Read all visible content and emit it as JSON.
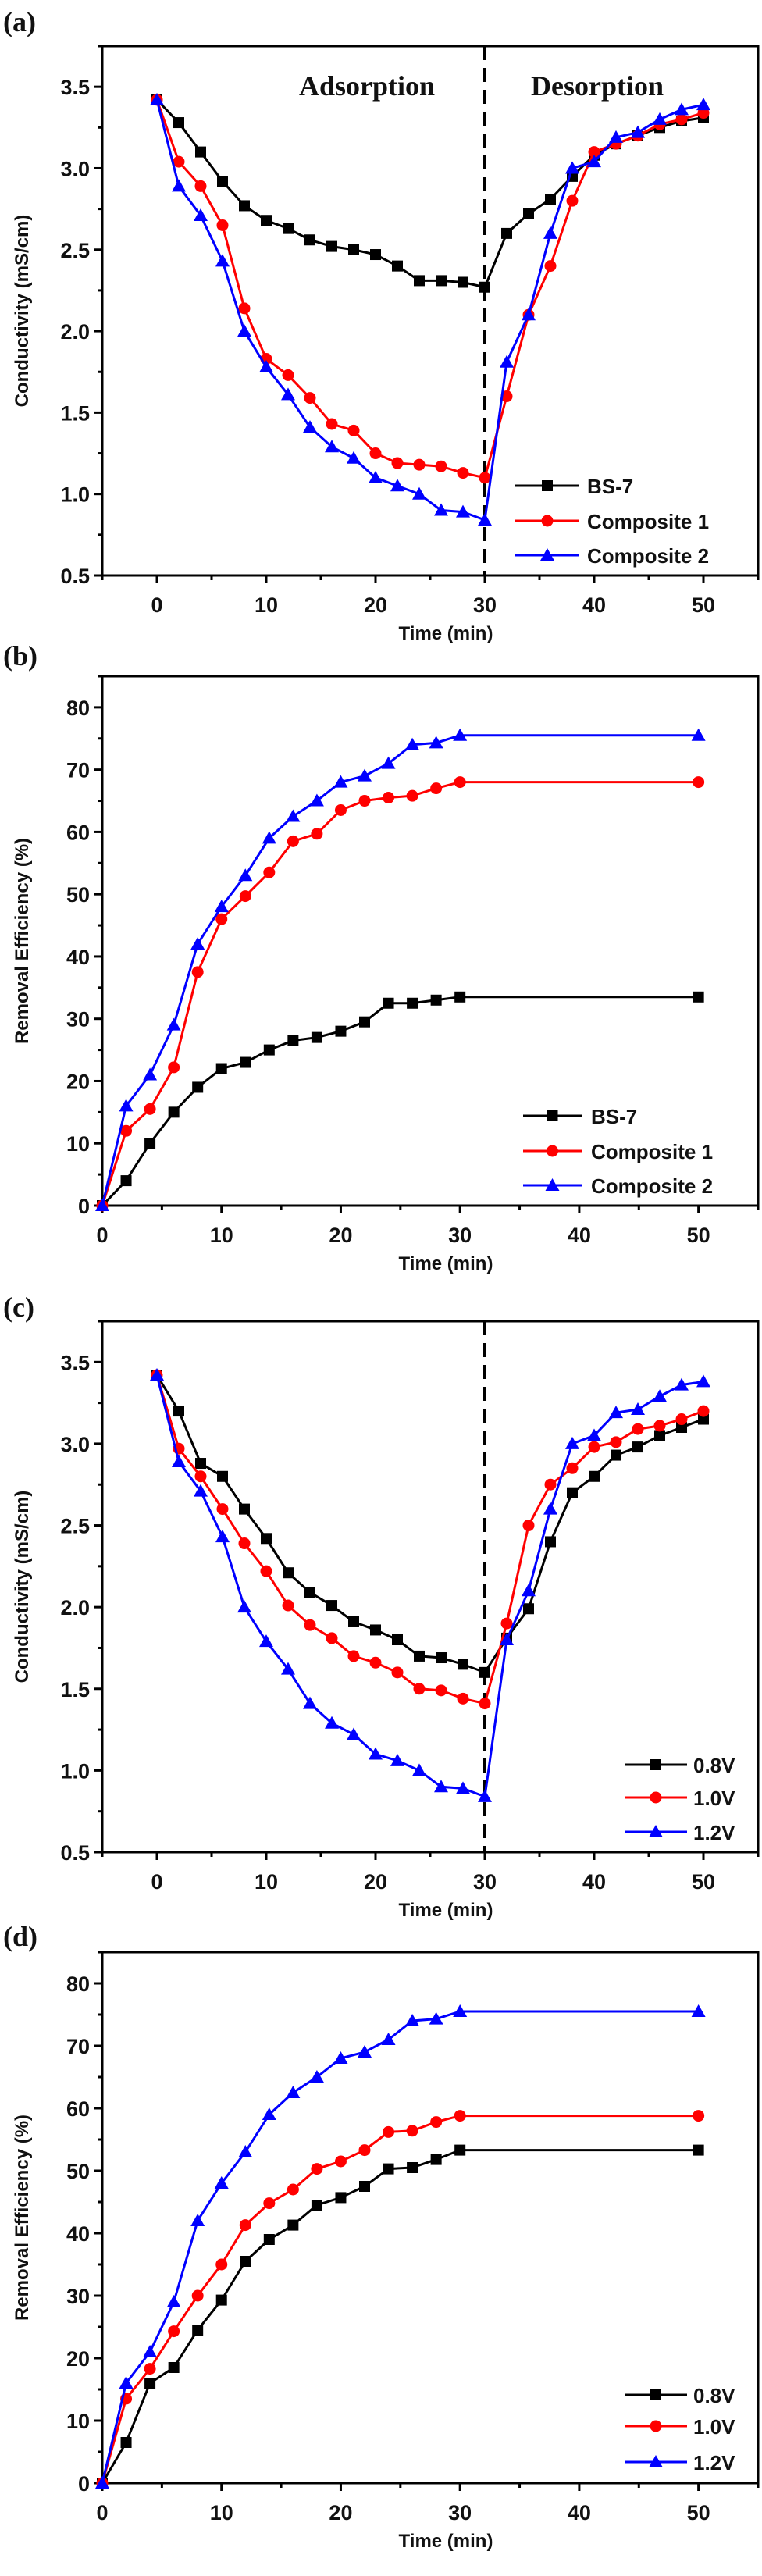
{
  "chart_data": [
    {
      "panel_label": "(a)",
      "type": "line",
      "xlabel": "Time (min)",
      "ylabel": "Conductivity (mS/cm)",
      "xlim": [
        -5,
        55
      ],
      "ylim": [
        0.5,
        3.75
      ],
      "xticks": [
        0,
        10,
        20,
        30,
        40,
        50
      ],
      "xtick_labels": [
        "0",
        "10",
        "20",
        "30",
        "40",
        "50"
      ],
      "yticks": [
        0.5,
        1.0,
        1.5,
        2.0,
        2.5,
        3.0,
        3.5
      ],
      "ytick_labels": [
        "0.5",
        "1.0",
        "1.5",
        "2.0",
        "2.5",
        "3.0",
        "3.5"
      ],
      "grid": false,
      "legend": "bottom-right",
      "vline": 30,
      "annotations": [
        "Adsorption",
        "Desorption"
      ],
      "x": [
        0,
        2,
        4,
        6,
        8,
        10,
        12,
        14,
        16,
        18,
        20,
        22,
        24,
        26,
        28,
        30,
        32,
        34,
        36,
        38,
        40,
        42,
        44,
        46,
        48,
        50
      ],
      "series": [
        {
          "name": "BS-7",
          "color": "#000000",
          "marker": "square",
          "values": [
            3.42,
            3.28,
            3.1,
            2.92,
            2.77,
            2.68,
            2.63,
            2.56,
            2.52,
            2.5,
            2.47,
            2.4,
            2.31,
            2.31,
            2.3,
            2.27,
            2.6,
            2.72,
            2.81,
            2.95,
            3.08,
            3.15,
            3.2,
            3.25,
            3.29,
            3.31
          ]
        },
        {
          "name": "Composite 1",
          "color": "#ff0000",
          "marker": "circle",
          "values": [
            3.42,
            3.04,
            2.89,
            2.65,
            2.14,
            1.83,
            1.73,
            1.59,
            1.43,
            1.39,
            1.25,
            1.19,
            1.18,
            1.17,
            1.13,
            1.1,
            1.6,
            2.1,
            2.4,
            2.8,
            3.1,
            3.15,
            3.2,
            3.27,
            3.3,
            3.34
          ]
        },
        {
          "name": "Composite 2",
          "color": "#0000ff",
          "marker": "triangle",
          "values": [
            3.42,
            2.89,
            2.71,
            2.43,
            2.0,
            1.78,
            1.61,
            1.41,
            1.29,
            1.22,
            1.1,
            1.05,
            1.0,
            0.9,
            0.89,
            0.84,
            1.81,
            2.1,
            2.6,
            3.0,
            3.04,
            3.19,
            3.22,
            3.3,
            3.36,
            3.39
          ]
        }
      ]
    },
    {
      "panel_label": "(b)",
      "type": "line",
      "xlabel": "Time (min)",
      "ylabel": "Removal Efficiency (%)",
      "xlim": [
        0,
        55
      ],
      "ylim": [
        0,
        85
      ],
      "xticks": [
        0,
        10,
        20,
        30,
        40,
        50
      ],
      "xtick_labels": [
        "0",
        "10",
        "20",
        "30",
        "40",
        "50"
      ],
      "yticks": [
        0,
        10,
        20,
        30,
        40,
        50,
        60,
        70,
        80
      ],
      "ytick_labels": [
        "0",
        "10",
        "20",
        "30",
        "40",
        "50",
        "60",
        "70",
        "80"
      ],
      "grid": false,
      "legend": "bottom-right",
      "x": [
        0,
        2,
        4,
        6,
        8,
        10,
        12,
        14,
        16,
        18,
        20,
        22,
        24,
        26,
        28,
        30,
        50
      ],
      "series": [
        {
          "name": "BS-7",
          "color": "#000000",
          "marker": "square",
          "values": [
            0,
            4,
            10,
            15,
            19,
            22,
            23,
            25,
            26.5,
            27,
            28,
            29.5,
            32.5,
            32.5,
            33,
            33.5,
            33.5
          ]
        },
        {
          "name": "Composite 1",
          "color": "#ff0000",
          "marker": "circle",
          "values": [
            0,
            12,
            15.5,
            22.2,
            37.5,
            46,
            49.7,
            53.5,
            58.5,
            59.7,
            63.5,
            65,
            65.5,
            65.8,
            67,
            68,
            68
          ]
        },
        {
          "name": "Composite 2",
          "color": "#0000ff",
          "marker": "triangle",
          "values": [
            0,
            16,
            21,
            29,
            42,
            48,
            53,
            59,
            62.5,
            65,
            68,
            69,
            71,
            74,
            74.3,
            75.5,
            75.5
          ]
        }
      ]
    },
    {
      "panel_label": "(c)",
      "type": "line",
      "xlabel": "Time (min)",
      "ylabel": "Conductivity (mS/cm)",
      "xlim": [
        -5,
        55
      ],
      "ylim": [
        0.5,
        3.75
      ],
      "xticks": [
        0,
        10,
        20,
        30,
        40,
        50
      ],
      "xtick_labels": [
        "0",
        "10",
        "20",
        "30",
        "40",
        "50"
      ],
      "yticks": [
        0.5,
        1.0,
        1.5,
        2.0,
        2.5,
        3.0,
        3.5
      ],
      "ytick_labels": [
        "0.5",
        "1.0",
        "1.5",
        "2.0",
        "2.5",
        "3.0",
        "3.5"
      ],
      "grid": false,
      "legend": "bottom-right",
      "vline": 30,
      "x": [
        0,
        2,
        4,
        6,
        8,
        10,
        12,
        14,
        16,
        18,
        20,
        22,
        24,
        26,
        28,
        30,
        32,
        34,
        36,
        38,
        40,
        42,
        44,
        46,
        48,
        50
      ],
      "series": [
        {
          "name": "0.8V",
          "color": "#000000",
          "marker": "square",
          "values": [
            3.42,
            3.2,
            2.88,
            2.8,
            2.6,
            2.42,
            2.21,
            2.09,
            2.01,
            1.91,
            1.86,
            1.8,
            1.7,
            1.69,
            1.65,
            1.6,
            1.81,
            1.99,
            2.4,
            2.7,
            2.8,
            2.93,
            2.98,
            3.05,
            3.1,
            3.15
          ]
        },
        {
          "name": "1.0V",
          "color": "#ff0000",
          "marker": "circle",
          "values": [
            3.42,
            2.97,
            2.8,
            2.6,
            2.39,
            2.22,
            2.01,
            1.89,
            1.81,
            1.7,
            1.66,
            1.6,
            1.5,
            1.49,
            1.44,
            1.41,
            1.9,
            2.5,
            2.75,
            2.85,
            2.98,
            3.01,
            3.09,
            3.11,
            3.15,
            3.2
          ]
        },
        {
          "name": "1.2V",
          "color": "#0000ff",
          "marker": "triangle",
          "values": [
            3.42,
            2.89,
            2.71,
            2.43,
            2.0,
            1.79,
            1.62,
            1.41,
            1.29,
            1.22,
            1.1,
            1.06,
            1.0,
            0.9,
            0.89,
            0.84,
            1.8,
            2.1,
            2.6,
            3.0,
            3.05,
            3.19,
            3.21,
            3.29,
            3.36,
            3.38
          ]
        }
      ]
    },
    {
      "panel_label": "(d)",
      "type": "line",
      "xlabel": "Time (min)",
      "ylabel": "Removal Efficiency (%)",
      "xlim": [
        0,
        55
      ],
      "ylim": [
        0,
        85
      ],
      "xticks": [
        0,
        10,
        20,
        30,
        40,
        50
      ],
      "xtick_labels": [
        "0",
        "10",
        "20",
        "30",
        "40",
        "50"
      ],
      "yticks": [
        0,
        10,
        20,
        30,
        40,
        50,
        60,
        70,
        80
      ],
      "ytick_labels": [
        "0",
        "10",
        "20",
        "30",
        "40",
        "50",
        "60",
        "70",
        "80"
      ],
      "grid": false,
      "legend": "bottom-right",
      "x": [
        0,
        2,
        4,
        6,
        8,
        10,
        12,
        14,
        16,
        18,
        20,
        22,
        24,
        26,
        28,
        30,
        50
      ],
      "series": [
        {
          "name": "0.8V",
          "color": "#000000",
          "marker": "square",
          "values": [
            0,
            6.5,
            16,
            18.5,
            24.5,
            29.3,
            35.5,
            39,
            41.3,
            44.5,
            45.7,
            47.5,
            50.3,
            50.5,
            51.8,
            53.3,
            53.3
          ]
        },
        {
          "name": "1.0V",
          "color": "#ff0000",
          "marker": "circle",
          "values": [
            0,
            13.5,
            18.3,
            24.3,
            30,
            35,
            41.3,
            44.8,
            47,
            50.3,
            51.5,
            53.3,
            56.2,
            56.4,
            57.8,
            58.8,
            58.8
          ]
        },
        {
          "name": "1.2V",
          "color": "#0000ff",
          "marker": "triangle",
          "values": [
            0,
            16,
            21,
            29,
            42,
            48,
            53,
            59,
            62.5,
            65,
            68,
            69,
            71,
            74,
            74.3,
            75.5,
            75.5
          ]
        }
      ]
    }
  ]
}
